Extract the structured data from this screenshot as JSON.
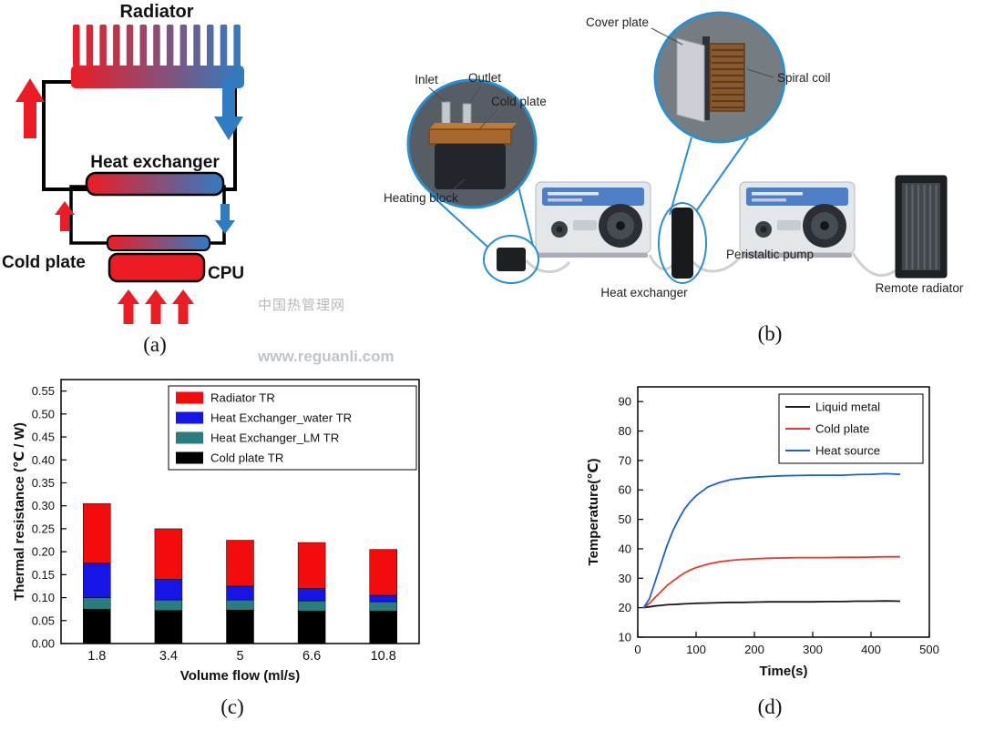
{
  "panel_labels": {
    "a": "(a)",
    "b": "(b)",
    "c": "(c)",
    "d": "(d)"
  },
  "watermarks": {
    "line1": "中国热管理网",
    "line2": "www.reguanli.com"
  },
  "schematic": {
    "radiator_label": "Radiator",
    "heat_exchanger_label": "Heat exchanger",
    "cold_plate_label": "Cold plate",
    "cpu_label": "CPU",
    "hot_color": "#ed1c24",
    "cold_color": "#2f7cc3"
  },
  "setup": {
    "cover_plate": "Cover plate",
    "spiral_coil": "Spiral coil",
    "inlet": "Inlet",
    "outlet": "Outlet",
    "cold_plate": "Cold plate",
    "heating_block": "Heating block",
    "peristaltic_pump": "Peristaltic pump",
    "heat_exchanger": "Heat exchanger",
    "remote_radiator": "Remote radiator",
    "callout_color": "#2a8fd0"
  },
  "chart_data": [
    {
      "id": "thermal_resistance",
      "type": "bar",
      "stacked": true,
      "xlabel": "Volume flow (ml/s)",
      "ylabel": "Thermal resistance (℃ / W)",
      "categories": [
        "1.8",
        "3.4",
        "5",
        "6.6",
        "10.8"
      ],
      "series": [
        {
          "name": "Cold plate TR",
          "color": "#000000",
          "values": [
            0.075,
            0.072,
            0.073,
            0.071,
            0.071
          ]
        },
        {
          "name": "Heat Exchanger_LM TR",
          "color": "#2a7d7d",
          "values": [
            0.025,
            0.023,
            0.022,
            0.022,
            0.02
          ]
        },
        {
          "name": "Heat Exchanger_water TR",
          "color": "#1515e8",
          "values": [
            0.075,
            0.045,
            0.03,
            0.027,
            0.014
          ]
        },
        {
          "name": "Radiator TR",
          "color": "#f20c0c",
          "values": [
            0.13,
            0.11,
            0.1,
            0.1,
            0.1
          ]
        }
      ],
      "legend": [
        "Radiator TR",
        "Heat Exchanger_water TR",
        "Heat Exchanger_LM TR",
        "Cold plate TR"
      ],
      "ylim": [
        0,
        0.575
      ],
      "yticks": [
        0,
        0.05,
        0.1,
        0.15,
        0.2,
        0.25,
        0.3,
        0.35,
        0.4,
        0.45,
        0.5,
        0.55
      ],
      "grid": false,
      "legend_position": "top-right-inside"
    },
    {
      "id": "temperature_vs_time",
      "type": "line",
      "xlabel": "Time(s)",
      "ylabel": "Temperature(℃)",
      "xlim": [
        0,
        500
      ],
      "ylim": [
        10,
        95
      ],
      "xticks": [
        0,
        100,
        200,
        300,
        400,
        500
      ],
      "yticks": [
        10,
        20,
        30,
        40,
        50,
        60,
        70,
        80,
        90
      ],
      "x": [
        10,
        20,
        30,
        40,
        50,
        60,
        70,
        80,
        90,
        100,
        120,
        140,
        160,
        180,
        200,
        225,
        250,
        275,
        300,
        325,
        350,
        375,
        400,
        425,
        450
      ],
      "series": [
        {
          "name": "Liquid metal",
          "color": "#1a1a1a",
          "values": [
            20,
            20.3,
            20.6,
            20.8,
            21,
            21.1,
            21.2,
            21.3,
            21.4,
            21.5,
            21.6,
            21.7,
            21.8,
            21.8,
            21.9,
            22,
            22,
            22,
            22,
            22.1,
            22.1,
            22.2,
            22.2,
            22.3,
            22.2
          ]
        },
        {
          "name": "Cold plate",
          "color": "#e8392f",
          "values": [
            20,
            21.5,
            23.5,
            25.5,
            27.5,
            29,
            30.5,
            31.8,
            32.8,
            33.6,
            34.8,
            35.6,
            36.1,
            36.4,
            36.6,
            36.8,
            36.9,
            37,
            37,
            37,
            37.1,
            37.1,
            37.2,
            37.3,
            37.3
          ]
        },
        {
          "name": "Heat source",
          "color": "#1f5fd0",
          "values": [
            20,
            23,
            29,
            35,
            41,
            46,
            50,
            53.5,
            56,
            58,
            61,
            62.5,
            63.5,
            64,
            64.3,
            64.6,
            64.8,
            64.9,
            65,
            65,
            65,
            65.2,
            65.3,
            65.5,
            65.3
          ]
        }
      ],
      "legend": [
        "Liquid metal",
        "Cold plate",
        "Heat source"
      ],
      "grid": false,
      "legend_position": "top-right-inside"
    }
  ]
}
